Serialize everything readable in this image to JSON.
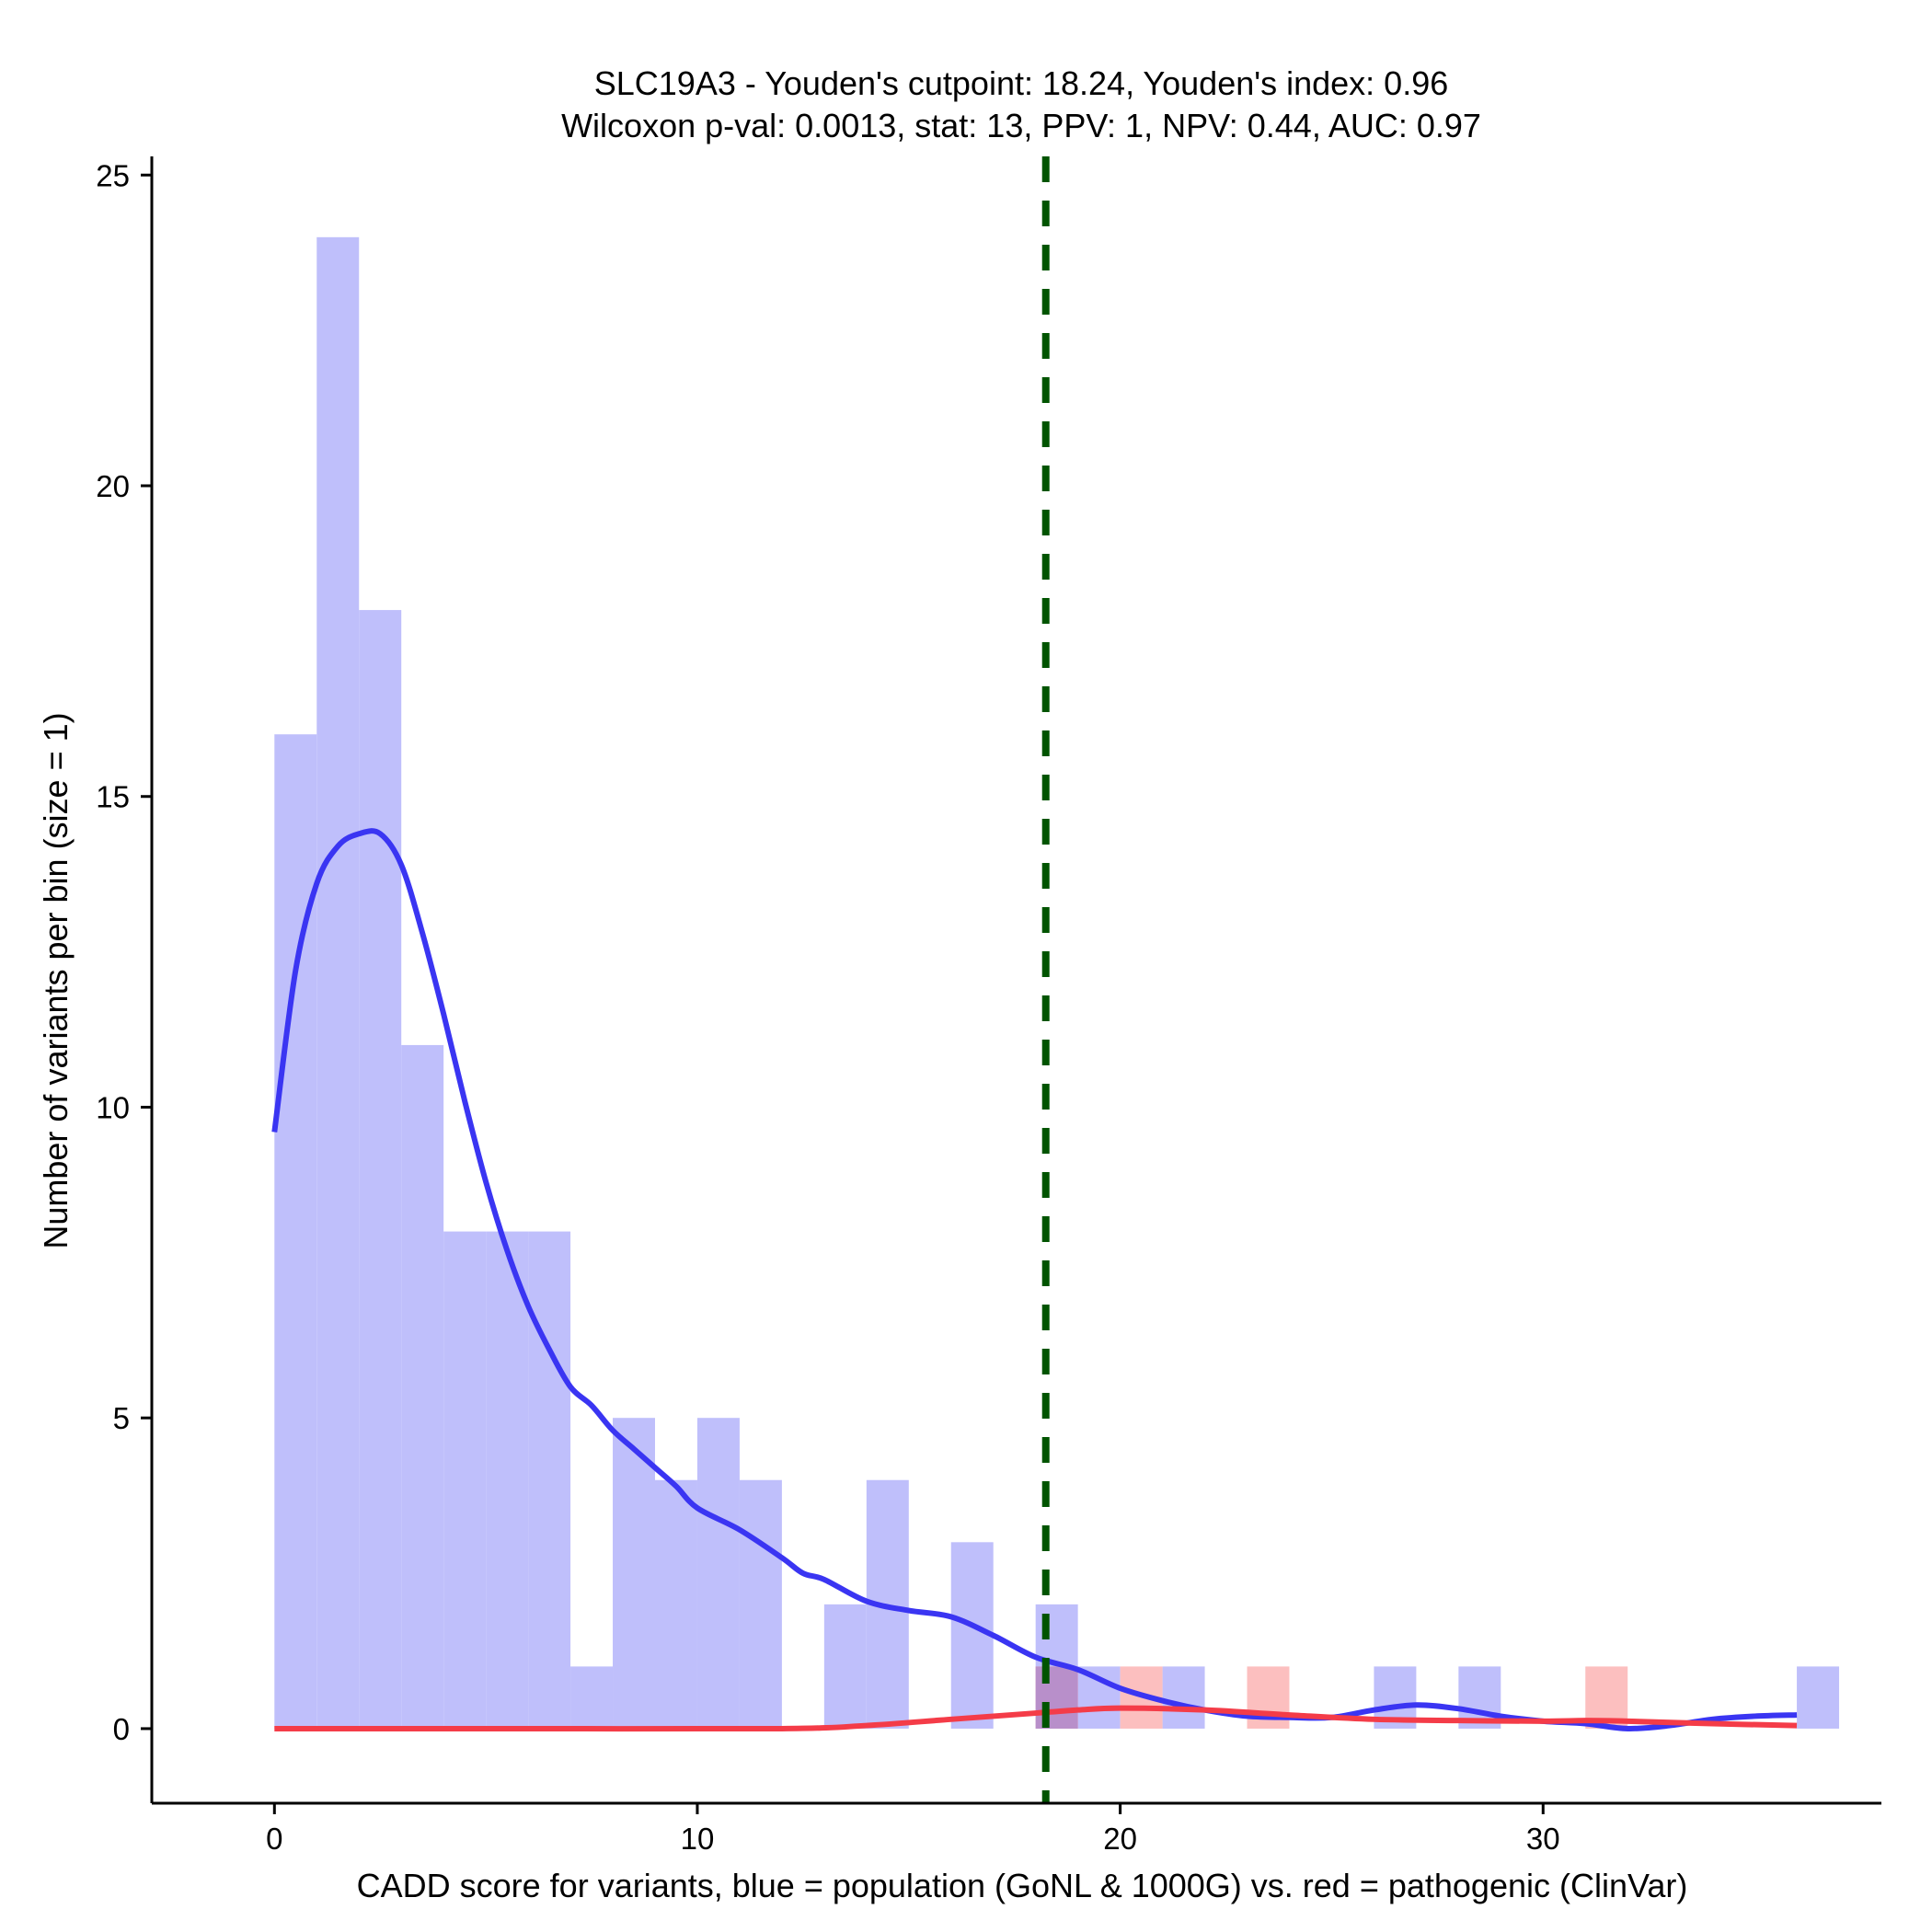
{
  "chart_data": {
    "type": "bar",
    "title": "SLC19A3 - Youden's cutpoint: 18.24, Youden's index: 0.96",
    "subtitle": "Wilcoxon p-val: 0.0013, stat: 13, PPV: 1, NPV: 0.44, AUC: 0.97",
    "xlabel": "CADD score for variants, blue = population (GoNL & 1000G) vs. red = pathogenic (ClinVar)",
    "ylabel": "Number of variants per bin (size = 1)",
    "xlim": [
      -2.9,
      38.0
    ],
    "ylim": [
      -1.2,
      25.3
    ],
    "x_ticks": [
      0,
      10,
      20,
      30
    ],
    "x_tick_labels": [
      "0",
      "10",
      "20",
      "30"
    ],
    "y_ticks": [
      0,
      5,
      10,
      15,
      20,
      25
    ],
    "y_tick_labels": [
      "0",
      "5",
      "10",
      "15",
      "20",
      "25"
    ],
    "bin_size": 1,
    "cutpoint": 18.24,
    "series": [
      {
        "name": "population (GoNL & 1000G)",
        "color": "#bfbffb",
        "bins": [
          {
            "x0": 0,
            "count": 16
          },
          {
            "x0": 1,
            "count": 24
          },
          {
            "x0": 2,
            "count": 18
          },
          {
            "x0": 3,
            "count": 11
          },
          {
            "x0": 4,
            "count": 8
          },
          {
            "x0": 5,
            "count": 8
          },
          {
            "x0": 6,
            "count": 8
          },
          {
            "x0": 7,
            "count": 1
          },
          {
            "x0": 8,
            "count": 5
          },
          {
            "x0": 9,
            "count": 4
          },
          {
            "x0": 10,
            "count": 5
          },
          {
            "x0": 11,
            "count": 4
          },
          {
            "x0": 13,
            "count": 2
          },
          {
            "x0": 14,
            "count": 4
          },
          {
            "x0": 16,
            "count": 3
          },
          {
            "x0": 18,
            "count": 2
          },
          {
            "x0": 19,
            "count": 1
          },
          {
            "x0": 21,
            "count": 1
          },
          {
            "x0": 26,
            "count": 1
          },
          {
            "x0": 28,
            "count": 1
          },
          {
            "x0": 36,
            "count": 1
          }
        ]
      },
      {
        "name": "pathogenic (ClinVar)",
        "color": "#fcbfbf",
        "bins": [
          {
            "x0": 18,
            "count": 1
          },
          {
            "x0": 20,
            "count": 1
          },
          {
            "x0": 23,
            "count": 1
          },
          {
            "x0": 31,
            "count": 1
          }
        ]
      }
    ],
    "overlap_color": "#b88fca",
    "density_curves": [
      {
        "name": "population density",
        "color": "#3a35f2",
        "points": [
          [
            0.0,
            9.6
          ],
          [
            0.5,
            12.2
          ],
          [
            1.0,
            13.6
          ],
          [
            1.5,
            14.2
          ],
          [
            2.0,
            14.4
          ],
          [
            2.5,
            14.4
          ],
          [
            3.0,
            13.9
          ],
          [
            3.5,
            12.8
          ],
          [
            4.0,
            11.5
          ],
          [
            4.5,
            10.1
          ],
          [
            5.0,
            8.8
          ],
          [
            5.5,
            7.7
          ],
          [
            6.0,
            6.8
          ],
          [
            6.5,
            6.1
          ],
          [
            7.0,
            5.5
          ],
          [
            7.5,
            5.2
          ],
          [
            8.0,
            4.8
          ],
          [
            8.5,
            4.5
          ],
          [
            9.0,
            4.2
          ],
          [
            9.5,
            3.9
          ],
          [
            10.0,
            3.55
          ],
          [
            11.0,
            3.2
          ],
          [
            12.0,
            2.75
          ],
          [
            12.5,
            2.5
          ],
          [
            13.0,
            2.4
          ],
          [
            14.0,
            2.05
          ],
          [
            15.0,
            1.9
          ],
          [
            16.0,
            1.8
          ],
          [
            17.0,
            1.5
          ],
          [
            18.0,
            1.15
          ],
          [
            19.0,
            0.95
          ],
          [
            20.0,
            0.65
          ],
          [
            21.0,
            0.45
          ],
          [
            22.0,
            0.3
          ],
          [
            23.0,
            0.2
          ],
          [
            24.0,
            0.18
          ],
          [
            25.0,
            0.18
          ],
          [
            26.0,
            0.3
          ],
          [
            27.0,
            0.38
          ],
          [
            28.0,
            0.32
          ],
          [
            29.0,
            0.2
          ],
          [
            30.0,
            0.12
          ],
          [
            31.0,
            0.08
          ],
          [
            32.0,
            0.0
          ],
          [
            33.0,
            0.05
          ],
          [
            34.0,
            0.15
          ],
          [
            35.0,
            0.2
          ],
          [
            36.0,
            0.22
          ]
        ]
      },
      {
        "name": "pathogenic density",
        "color": "#f43c48",
        "points": [
          [
            0.0,
            0.0
          ],
          [
            6.0,
            0.0
          ],
          [
            12.0,
            0.0
          ],
          [
            14.0,
            0.05
          ],
          [
            16.0,
            0.15
          ],
          [
            18.0,
            0.25
          ],
          [
            19.0,
            0.3
          ],
          [
            20.0,
            0.33
          ],
          [
            22.0,
            0.3
          ],
          [
            24.0,
            0.22
          ],
          [
            26.0,
            0.15
          ],
          [
            28.0,
            0.13
          ],
          [
            30.0,
            0.12
          ],
          [
            31.0,
            0.13
          ],
          [
            32.0,
            0.12
          ],
          [
            34.0,
            0.08
          ],
          [
            36.0,
            0.05
          ]
        ]
      }
    ]
  }
}
